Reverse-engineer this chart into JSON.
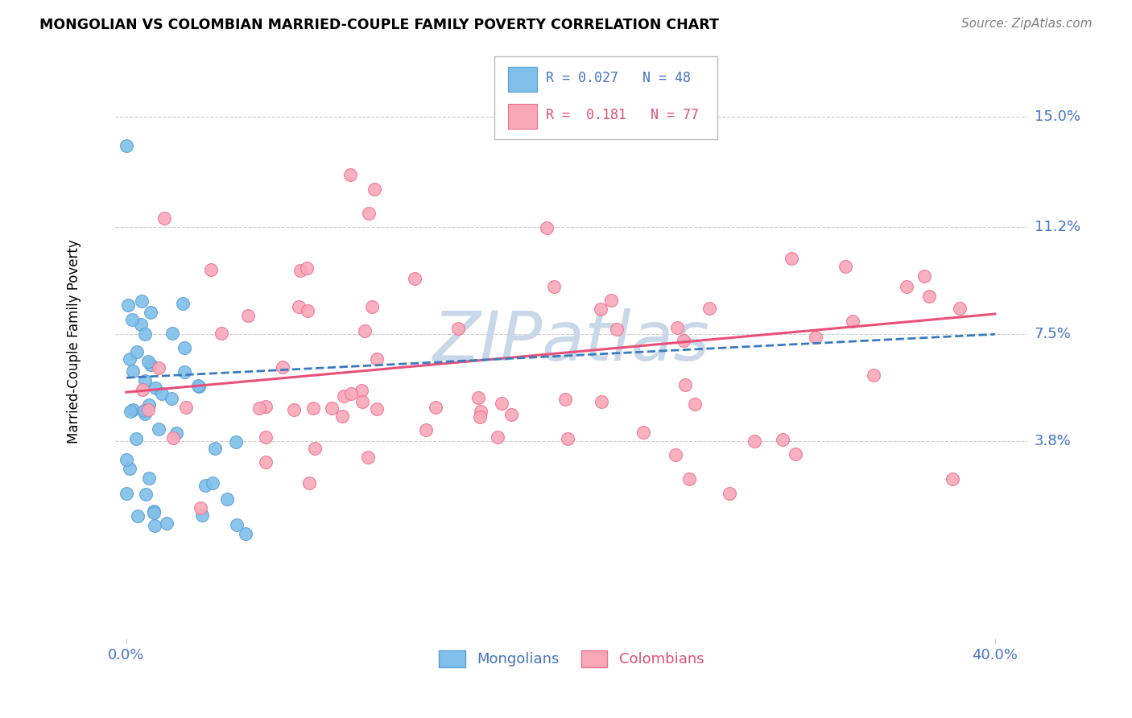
{
  "title": "MONGOLIAN VS COLOMBIAN MARRIED-COUPLE FAMILY POVERTY CORRELATION CHART",
  "source": "Source: ZipAtlas.com",
  "ylabel": "Married-Couple Family Poverty",
  "ytick_labels": [
    "15.0%",
    "11.2%",
    "7.5%",
    "3.8%"
  ],
  "ytick_values": [
    0.15,
    0.112,
    0.075,
    0.038
  ],
  "xlim": [
    0.0,
    0.4
  ],
  "ylim": [
    -0.03,
    0.175
  ],
  "mongolian_color": "#7fbfea",
  "colombian_color": "#f9a8b8",
  "mongolian_edge_color": "#5a9fd4",
  "colombian_edge_color": "#f07090",
  "mongolian_line_color": "#3a7bbf",
  "colombian_line_color": "#e8507a",
  "watermark_color": "#c8d8e8",
  "background_color": "#ffffff",
  "grid_color": "#cccccc",
  "axis_label_color": "#4472c4",
  "title_color": "#000000",
  "source_color": "#808080"
}
